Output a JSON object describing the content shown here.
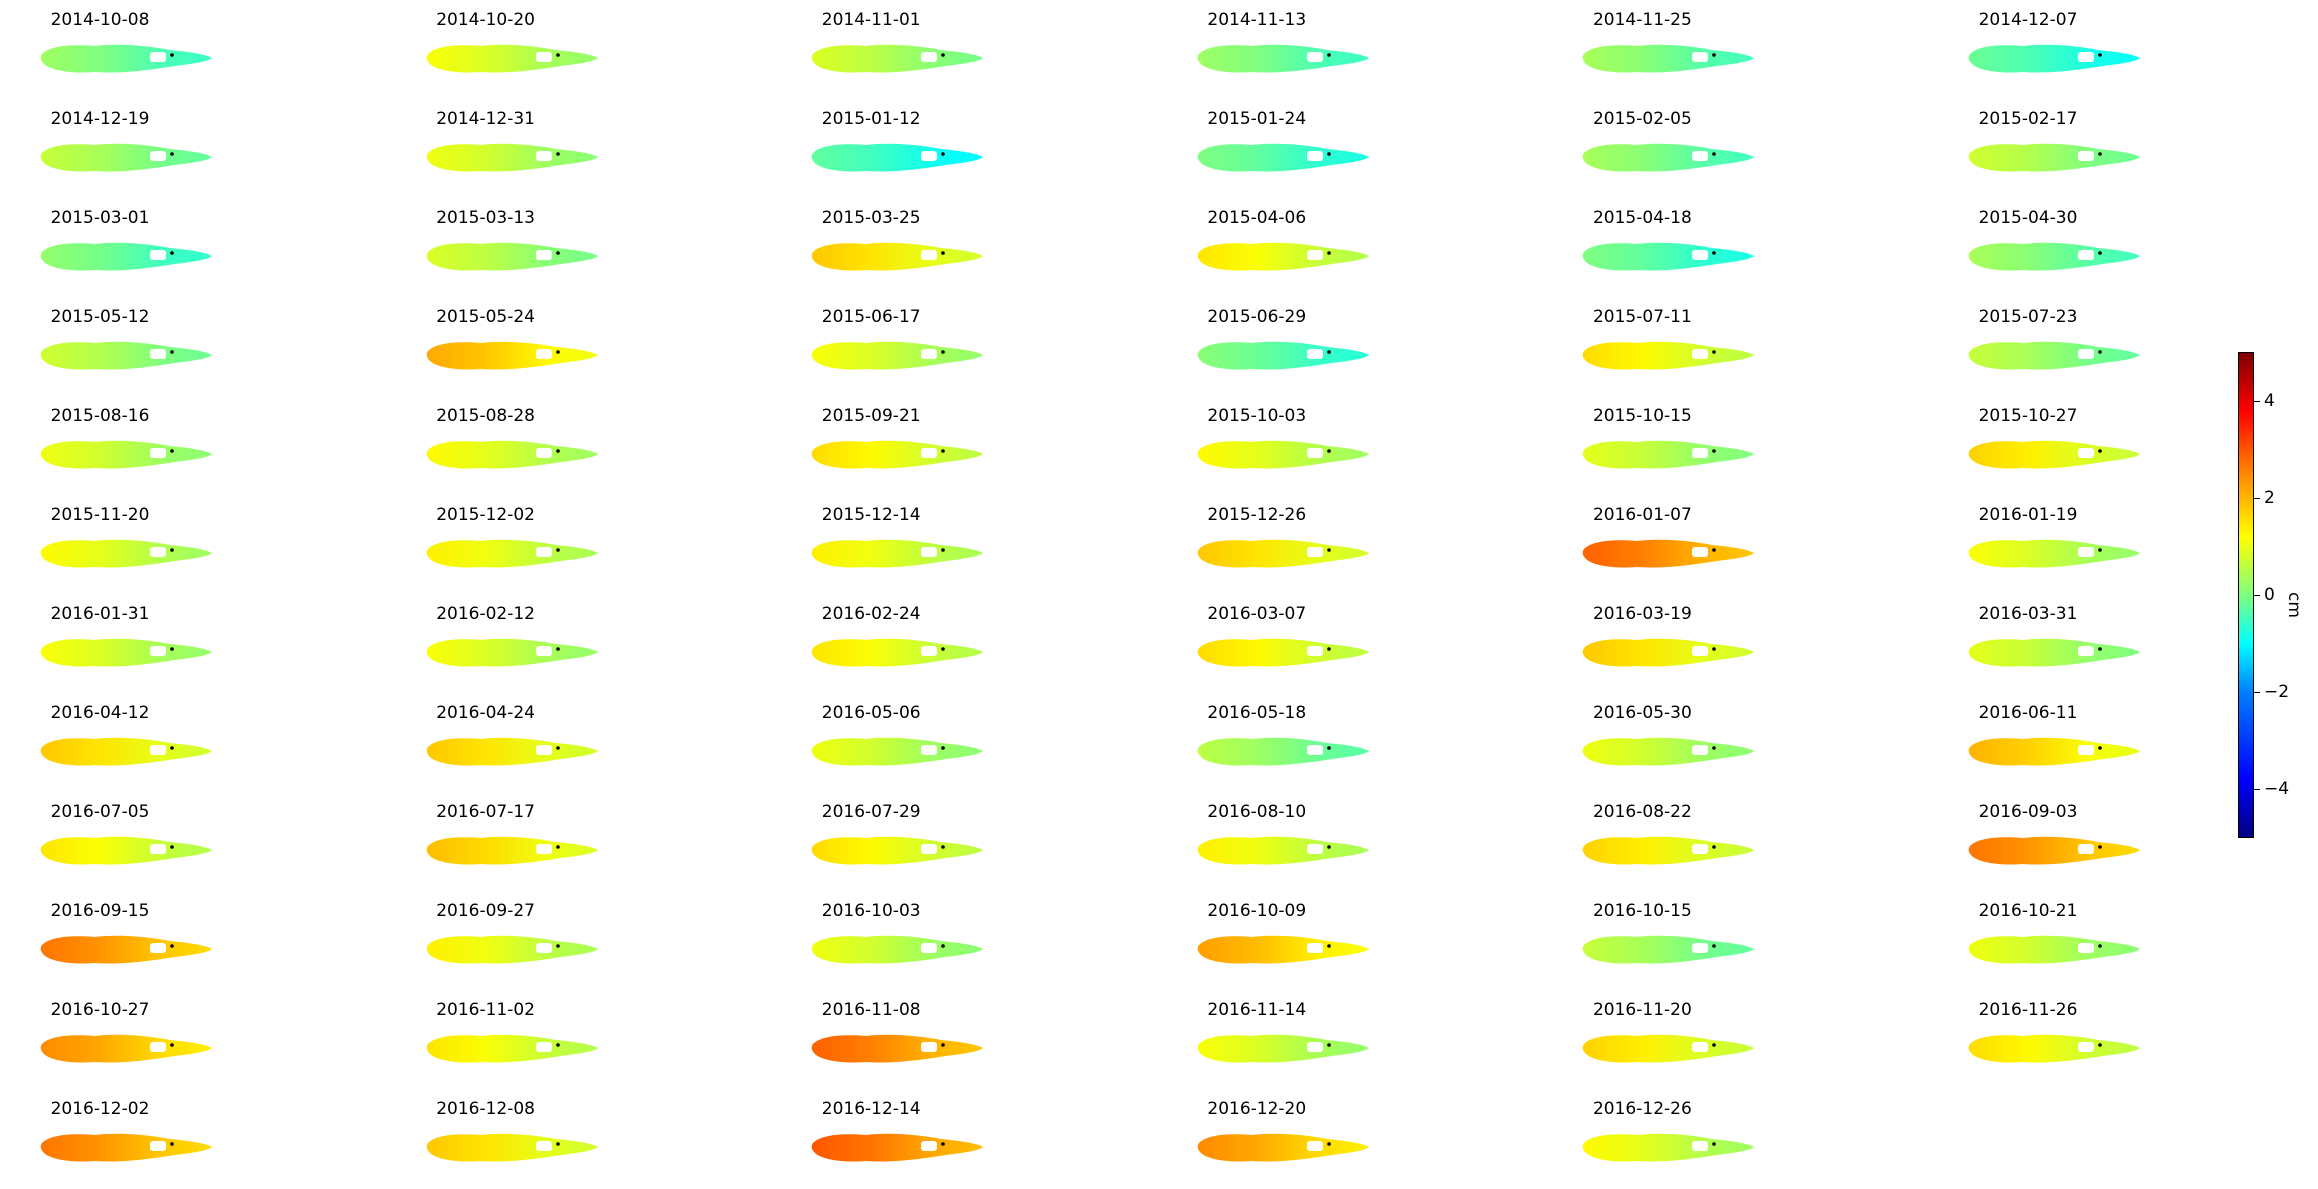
{
  "chart_data": {
    "type": "heatmap",
    "description_of_panels": "",
    "panel_titles": [
      "2014-10-08",
      "2014-10-20",
      "2014-11-01",
      "2014-11-13",
      "2014-11-25",
      "2014-12-07",
      "2014-12-19",
      "2014-12-31",
      "2015-01-12",
      "2015-01-24",
      "2015-02-05",
      "2015-02-17",
      "2015-03-01",
      "2015-03-13",
      "2015-03-25",
      "2015-04-06",
      "2015-04-18",
      "2015-04-30",
      "2015-05-12",
      "2015-05-24",
      "2015-06-17",
      "2015-06-29",
      "2015-07-11",
      "2015-07-23",
      "2015-08-16",
      "2015-08-28",
      "2015-09-21",
      "2015-10-03",
      "2015-10-15",
      "2015-10-27",
      "2015-11-20",
      "2015-12-02",
      "2015-12-14",
      "2015-12-26",
      "2016-01-07",
      "2016-01-19",
      "2016-01-31",
      "2016-02-12",
      "2016-02-24",
      "2016-03-07",
      "2016-03-19",
      "2016-03-31",
      "2016-04-12",
      "2016-04-24",
      "2016-05-06",
      "2016-05-18",
      "2016-05-30",
      "2016-06-11",
      "2016-07-05",
      "2016-07-17",
      "2016-07-29",
      "2016-08-10",
      "2016-08-22",
      "2016-09-03",
      "2016-09-15",
      "2016-09-27",
      "2016-10-03",
      "2016-10-09",
      "2016-10-15",
      "2016-10-21",
      "2016-10-27",
      "2016-11-02",
      "2016-11-08",
      "2016-11-14",
      "2016-11-20",
      "2016-11-26",
      "2016-12-02",
      "2016-12-08",
      "2016-12-14",
      "2016-12-20",
      "2016-12-26"
    ],
    "panel_mean_cm": [
      -0.3,
      0.6,
      0.3,
      -0.3,
      -0.2,
      -0.8,
      0.1,
      0.5,
      -0.9,
      -0.6,
      -0.2,
      0.2,
      -0.4,
      0.3,
      1.2,
      0.9,
      -0.6,
      -0.2,
      0.2,
      1.5,
      0.6,
      -0.5,
      1.0,
      0.1,
      0.5,
      0.7,
      1.0,
      0.7,
      0.4,
      1.1,
      0.7,
      0.8,
      0.8,
      1.2,
      2.2,
      0.6,
      0.6,
      0.6,
      0.9,
      1.0,
      1.2,
      0.4,
      1.2,
      1.2,
      0.5,
      0.0,
      0.5,
      1.4,
      0.9,
      1.3,
      1.0,
      0.8,
      1.1,
      2.0,
      2.0,
      0.8,
      0.5,
      1.6,
      0.1,
      0.5,
      1.8,
      0.9,
      2.2,
      0.6,
      1.1,
      1.0,
      2.0,
      1.2,
      2.3,
      1.8,
      0.7
    ],
    "colorbar": {
      "colormap": "jet",
      "vmin": -5,
      "vmax": 5,
      "ticks": [
        4,
        2,
        0,
        -2,
        -4
      ],
      "tick_labels": [
        "4",
        "2",
        "0",
        "−2",
        "−4"
      ],
      "label": "cm"
    },
    "grid_columns": 6,
    "panel_count": 71
  }
}
